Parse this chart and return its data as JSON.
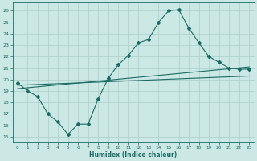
{
  "xlabel": "Humidex (Indice chaleur)",
  "bg_color": "#cce8e4",
  "grid_color": "#aacfca",
  "line_color": "#1a6b65",
  "xlim": [
    -0.5,
    23.5
  ],
  "ylim": [
    14.5,
    26.7
  ],
  "xticks": [
    0,
    1,
    2,
    3,
    4,
    5,
    6,
    7,
    8,
    9,
    10,
    11,
    12,
    13,
    14,
    15,
    16,
    17,
    18,
    19,
    20,
    21,
    22,
    23
  ],
  "yticks": [
    15,
    16,
    17,
    18,
    19,
    20,
    21,
    22,
    23,
    24,
    25,
    26
  ],
  "line1_x": [
    0,
    1,
    2,
    3,
    4,
    5,
    6,
    7,
    8,
    9,
    10,
    11,
    12,
    13,
    14,
    15,
    16,
    17,
    18,
    19,
    20,
    21,
    22,
    23
  ],
  "line1_y": [
    19.7,
    19.0,
    18.5,
    17.0,
    16.3,
    15.2,
    16.1,
    16.1,
    18.3,
    20.1,
    21.3,
    22.1,
    23.2,
    23.5,
    25.0,
    26.0,
    26.1,
    24.5,
    23.2,
    22.0,
    21.5,
    21.0,
    20.9,
    20.9
  ],
  "line2_x": [
    0,
    23
  ],
  "line2_y": [
    19.2,
    21.1
  ],
  "line3_x": [
    0,
    23
  ],
  "line3_y": [
    19.5,
    20.3
  ]
}
